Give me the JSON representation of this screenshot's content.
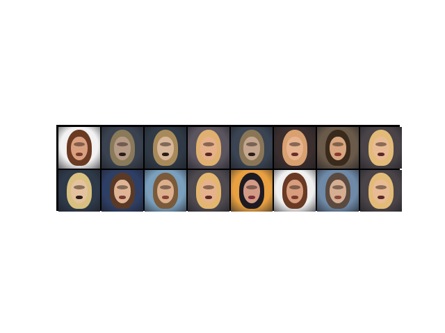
{
  "grid": {
    "rows": 2,
    "cols": 8,
    "tiles": [
      {
        "description_icon": "face-image",
        "bg": "#f2f2f2",
        "hair": "#6b3a22",
        "face": "#d9a07f",
        "mouth": "#7a3b2e"
      },
      {
        "description_icon": "face-image",
        "bg": "#3a4250",
        "hair": "#8a7a5a",
        "face": "#b59a86",
        "mouth": "#2a1e1a"
      },
      {
        "description_icon": "face-image",
        "bg": "#2f3a46",
        "hair": "#a88a5a",
        "face": "#d8b79a",
        "mouth": "#2a1e1a"
      },
      {
        "description_icon": "face-image",
        "bg": "#5b5560",
        "hair": "#e0b070",
        "face": "#e6b08a",
        "mouth": "#5a2a28"
      },
      {
        "description_icon": "face-image",
        "bg": "#3a4452",
        "hair": "#8a7656",
        "face": "#c4a68e",
        "mouth": "#2a1e1a"
      },
      {
        "description_icon": "face-image",
        "bg": "#3a2e2e",
        "hair": "#d9a070",
        "face": "#e7b48f",
        "mouth": "#6a2e2a"
      },
      {
        "description_icon": "face-image",
        "bg": "#6a5a4a",
        "hair": "#3a2a1c",
        "face": "#d7a57f",
        "mouth": "#8a3a32"
      },
      {
        "description_icon": "face-image",
        "bg": "#4a4448",
        "hair": "#e3bb78",
        "face": "#e9bb95",
        "mouth": "#5a2a28"
      },
      {
        "description_icon": "face-image",
        "bg": "#2e3a4a",
        "hair": "#d8c080",
        "face": "#e5c29f",
        "mouth": "#2a1e1a"
      },
      {
        "description_icon": "face-image",
        "bg": "#2e3f66",
        "hair": "#5a3a26",
        "face": "#e0b596",
        "mouth": "#7a3a32"
      },
      {
        "description_icon": "face-image",
        "bg": "#7aa0bd",
        "hair": "#7a5a3a",
        "face": "#dcb08c",
        "mouth": "#8a4038"
      },
      {
        "description_icon": "face-image",
        "bg": "#4e4a50",
        "hair": "#e3b670",
        "face": "#e6b28d",
        "mouth": "#5a2a28"
      },
      {
        "description_icon": "face-image",
        "bg": "#e8a040",
        "hair": "#1e1a22",
        "face": "#d39a86",
        "mouth": "#7a2e3a"
      },
      {
        "description_icon": "face-image",
        "bg": "#f0f0f0",
        "hair": "#6a3a24",
        "face": "#d89d7d",
        "mouth": "#7a3b2e"
      },
      {
        "description_icon": "face-image",
        "bg": "#6f8aa8",
        "hair": "#5a4a40",
        "face": "#d6ae92",
        "mouth": "#8a4a40"
      },
      {
        "description_icon": "face-image",
        "bg": "#4a4448",
        "hair": "#e3bb78",
        "face": "#e9bb95",
        "mouth": "#5a2a28"
      }
    ]
  }
}
